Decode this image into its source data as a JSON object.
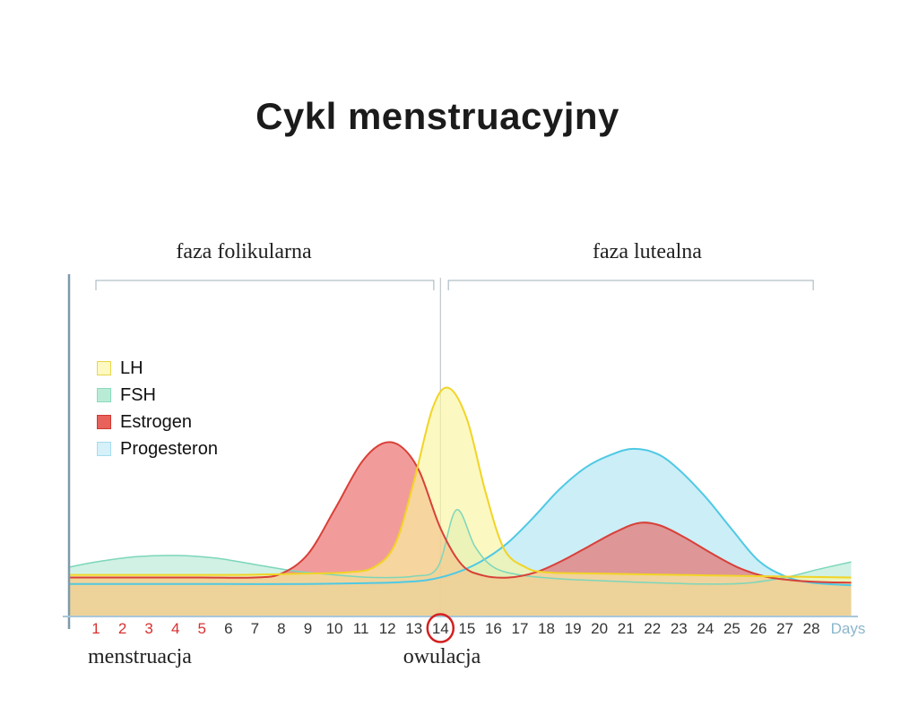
{
  "title": "Cykl menstruacyjny",
  "phases": {
    "follicular": "faza folikularna",
    "luteal": "faza lutealna"
  },
  "annotations": {
    "menstruation": "menstruacja",
    "ovulation": "owulacja"
  },
  "colors": {
    "title_text": "#1b1b1b",
    "serif_text": "#222222",
    "day_number": "#333333",
    "menstruation_day_number": "#d93030",
    "ovulation_circle": "#d42020",
    "days_axis_label": "#8ab6cc",
    "y_axis": "#7f9aab",
    "x_axis": "#a9c7d8",
    "bracket": "#9fb0ba",
    "ovulation_line": "#b4bdc2"
  },
  "chart_data": {
    "type": "area",
    "title": "Cykl menstruacyjny",
    "xlabel": "Days",
    "ylabel": "",
    "x_range": [
      1,
      28
    ],
    "x_ticks": [
      1,
      2,
      3,
      4,
      5,
      6,
      7,
      8,
      9,
      10,
      11,
      12,
      13,
      14,
      15,
      16,
      17,
      18,
      19,
      20,
      21,
      22,
      23,
      24,
      25,
      26,
      27,
      28
    ],
    "menstruation_days": [
      1,
      2,
      3,
      4,
      5
    ],
    "ovulation_day": 14,
    "phase_split_day": 14,
    "legend_position": "top-left",
    "grid": false,
    "y_unit": "relative hormone level (0-1)",
    "draw_order": [
      "Progesteron",
      "FSH",
      "Estrogen",
      "LH"
    ],
    "series": [
      {
        "name": "LH",
        "stroke": "#f1d426",
        "fill": "rgba(251,244,160,0.65)",
        "stroke_width": 2,
        "swatch": {
          "fill": "#fdf9c0",
          "border": "#e8d54a"
        },
        "points": [
          [
            0,
            0.16
          ],
          [
            3,
            0.16
          ],
          [
            6,
            0.16
          ],
          [
            9,
            0.165
          ],
          [
            10.5,
            0.17
          ],
          [
            11.5,
            0.19
          ],
          [
            12.3,
            0.28
          ],
          [
            13,
            0.52
          ],
          [
            13.7,
            0.8
          ],
          [
            14.3,
            0.88
          ],
          [
            15,
            0.76
          ],
          [
            15.7,
            0.48
          ],
          [
            16.4,
            0.26
          ],
          [
            17.2,
            0.19
          ],
          [
            18,
            0.17
          ],
          [
            20,
            0.165
          ],
          [
            23,
            0.16
          ],
          [
            26,
            0.155
          ],
          [
            29.5,
            0.15
          ]
        ]
      },
      {
        "name": "FSH",
        "stroke": "#7cd6ba",
        "fill": "rgba(150,225,195,0.45)",
        "stroke_width": 1.5,
        "swatch": {
          "fill": "#b9ecd6",
          "border": "#8adbbd"
        },
        "points": [
          [
            0,
            0.19
          ],
          [
            1,
            0.21
          ],
          [
            2.5,
            0.23
          ],
          [
            4,
            0.235
          ],
          [
            5.5,
            0.225
          ],
          [
            7,
            0.2
          ],
          [
            8.5,
            0.175
          ],
          [
            10,
            0.16
          ],
          [
            11.5,
            0.15
          ],
          [
            13,
            0.155
          ],
          [
            13.9,
            0.19
          ],
          [
            14.6,
            0.41
          ],
          [
            15.3,
            0.27
          ],
          [
            16,
            0.19
          ],
          [
            17,
            0.16
          ],
          [
            18.5,
            0.145
          ],
          [
            20,
            0.138
          ],
          [
            22,
            0.13
          ],
          [
            24,
            0.125
          ],
          [
            25.5,
            0.128
          ],
          [
            27,
            0.15
          ],
          [
            28.2,
            0.18
          ],
          [
            29.5,
            0.21
          ]
        ]
      },
      {
        "name": "Estrogen",
        "stroke": "#d84038",
        "fill": "rgba(233,96,92,0.62)",
        "stroke_width": 2,
        "swatch": {
          "fill": "#e8615a",
          "border": "#cc3a33"
        },
        "points": [
          [
            0,
            0.15
          ],
          [
            3,
            0.15
          ],
          [
            5,
            0.15
          ],
          [
            7,
            0.15
          ],
          [
            8,
            0.165
          ],
          [
            9,
            0.24
          ],
          [
            10,
            0.41
          ],
          [
            11,
            0.59
          ],
          [
            11.8,
            0.665
          ],
          [
            12.5,
            0.655
          ],
          [
            13.2,
            0.56
          ],
          [
            14,
            0.34
          ],
          [
            14.8,
            0.2
          ],
          [
            15.6,
            0.158
          ],
          [
            16.6,
            0.15
          ],
          [
            17.6,
            0.17
          ],
          [
            18.6,
            0.215
          ],
          [
            19.6,
            0.27
          ],
          [
            20.6,
            0.325
          ],
          [
            21.5,
            0.36
          ],
          [
            22.3,
            0.35
          ],
          [
            23.2,
            0.305
          ],
          [
            24.2,
            0.245
          ],
          [
            25.2,
            0.19
          ],
          [
            26.2,
            0.155
          ],
          [
            27.2,
            0.14
          ],
          [
            28.2,
            0.133
          ],
          [
            29.5,
            0.13
          ]
        ]
      },
      {
        "name": "Progesteron",
        "stroke": "#4fc9e4",
        "fill": "rgba(170,226,242,0.6)",
        "stroke_width": 2,
        "swatch": {
          "fill": "#d6f1f9",
          "border": "#a5dcee"
        },
        "points": [
          [
            0,
            0.125
          ],
          [
            3,
            0.125
          ],
          [
            6,
            0.125
          ],
          [
            9,
            0.125
          ],
          [
            11,
            0.128
          ],
          [
            12.5,
            0.132
          ],
          [
            13.5,
            0.14
          ],
          [
            14.5,
            0.165
          ],
          [
            15.5,
            0.21
          ],
          [
            16.5,
            0.28
          ],
          [
            17.5,
            0.38
          ],
          [
            18.5,
            0.49
          ],
          [
            19.5,
            0.575
          ],
          [
            20.5,
            0.625
          ],
          [
            21.3,
            0.645
          ],
          [
            22.2,
            0.625
          ],
          [
            23,
            0.565
          ],
          [
            24,
            0.46
          ],
          [
            25,
            0.335
          ],
          [
            26,
            0.215
          ],
          [
            27,
            0.155
          ],
          [
            28,
            0.13
          ],
          [
            29.5,
            0.12
          ]
        ]
      }
    ]
  }
}
